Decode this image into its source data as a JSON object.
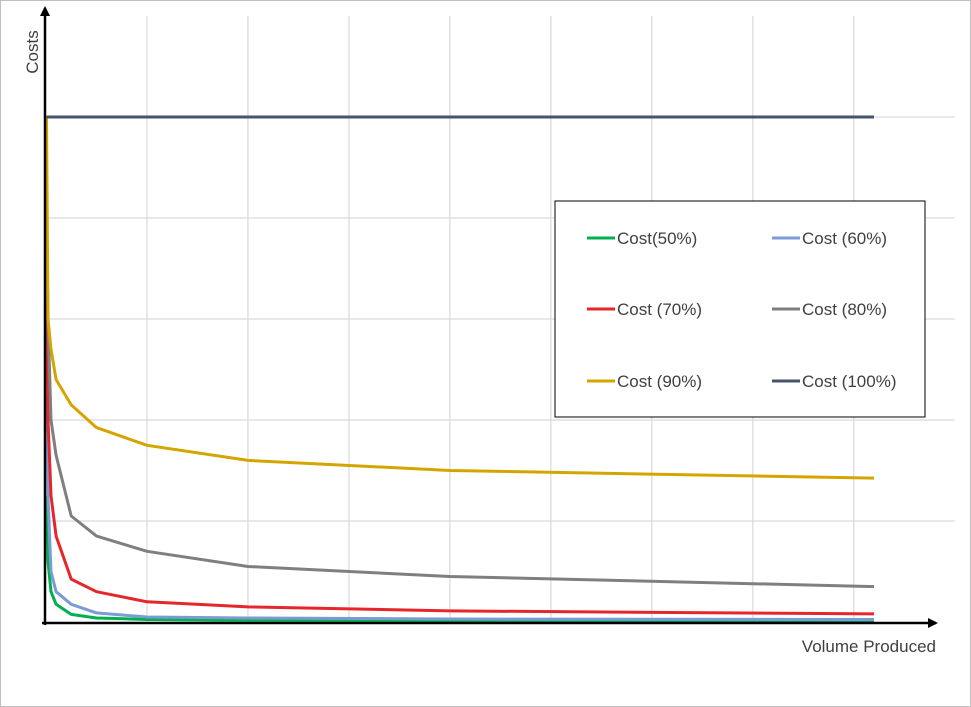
{
  "chart_data": {
    "type": "line",
    "xlabel": "Volume Produced",
    "ylabel": "Costs",
    "ylim": [
      0,
      100
    ],
    "xlim": [
      0,
      82
    ],
    "grid": true,
    "legend_position": "right",
    "x": [
      0.05,
      0.2,
      0.5,
      1,
      2.5,
      5,
      10,
      20,
      40,
      82
    ],
    "series": [
      {
        "name": "Cost(50%)",
        "color": "#00b050",
        "values": [
          25,
          12,
          6,
          3.5,
          1.5,
          0.8,
          0.5,
          0.35,
          0.3,
          0.25
        ]
      },
      {
        "name": "Cost (60%)",
        "color": "#7b9bd4",
        "values": [
          45,
          25,
          10,
          6,
          3.5,
          1.8,
          1,
          0.8,
          0.6,
          0.5
        ]
      },
      {
        "name": "Cost (70%)",
        "color": "#e6262b",
        "values": [
          65,
          40,
          25,
          17,
          8.5,
          6,
          4,
          3,
          2.2,
          1.6
        ]
      },
      {
        "name": "Cost (80%)",
        "color": "#7f7f7f",
        "values": [
          80,
          60,
          40,
          33,
          21,
          17,
          14,
          11,
          9,
          7
        ]
      },
      {
        "name": "Cost (90%)",
        "color": "#d4a500",
        "values": [
          100,
          60,
          54,
          48,
          43,
          38.5,
          35,
          32,
          30,
          28.5
        ]
      },
      {
        "name": "Cost (100%)",
        "color": "#44546a",
        "values": [
          100,
          100,
          100,
          100,
          100,
          100,
          100,
          100,
          100,
          100
        ]
      }
    ]
  }
}
